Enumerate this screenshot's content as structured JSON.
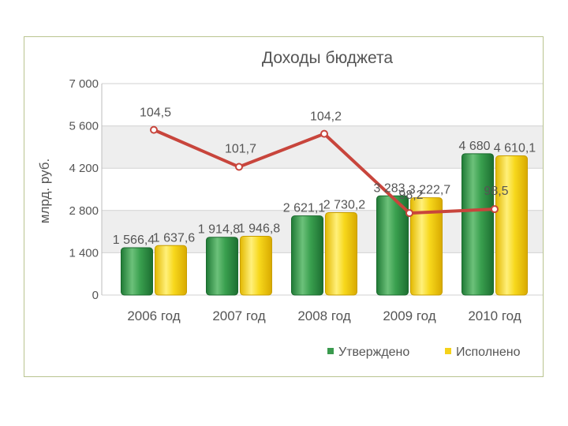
{
  "chart_data": {
    "type": "bar",
    "title": "Доходы бюджета",
    "ylabel": "млрд. руб.",
    "xlabel": "",
    "ylim": [
      0,
      7000
    ],
    "yticks": [
      0,
      1400,
      2800,
      4200,
      5600,
      7000
    ],
    "ytick_labels": [
      "0",
      "1 400",
      "2 800",
      "4 200",
      "5 600",
      "7 000"
    ],
    "categories": [
      "2006 год",
      "2007 год",
      "2008 год",
      "2009 год",
      "2010 год"
    ],
    "series": [
      {
        "name": "Утверждено",
        "values": [
          1566.4,
          1914.8,
          2621.1,
          3283,
          4680
        ],
        "labels": [
          "1 566,4",
          "1 914,8",
          "2 621,1",
          "3 283",
          "4 680"
        ],
        "color": "#3a9a4e"
      },
      {
        "name": "Исполнено",
        "values": [
          1637.6,
          1946.8,
          2730.2,
          3222.7,
          4610.1
        ],
        "labels": [
          "1 637,6",
          "1 946,8",
          "2 730,2",
          "3 222,7",
          "4 610,1"
        ],
        "color": "#f5d21a"
      }
    ],
    "line": {
      "type": "line",
      "values": [
        104.5,
        101.7,
        104.2,
        98.2,
        98.5
      ],
      "labels": [
        "104,5",
        "101,7",
        "104,2",
        "98,2",
        "98,5"
      ],
      "color": "#c8453c"
    },
    "grid": true,
    "legend": "bottom-right"
  }
}
